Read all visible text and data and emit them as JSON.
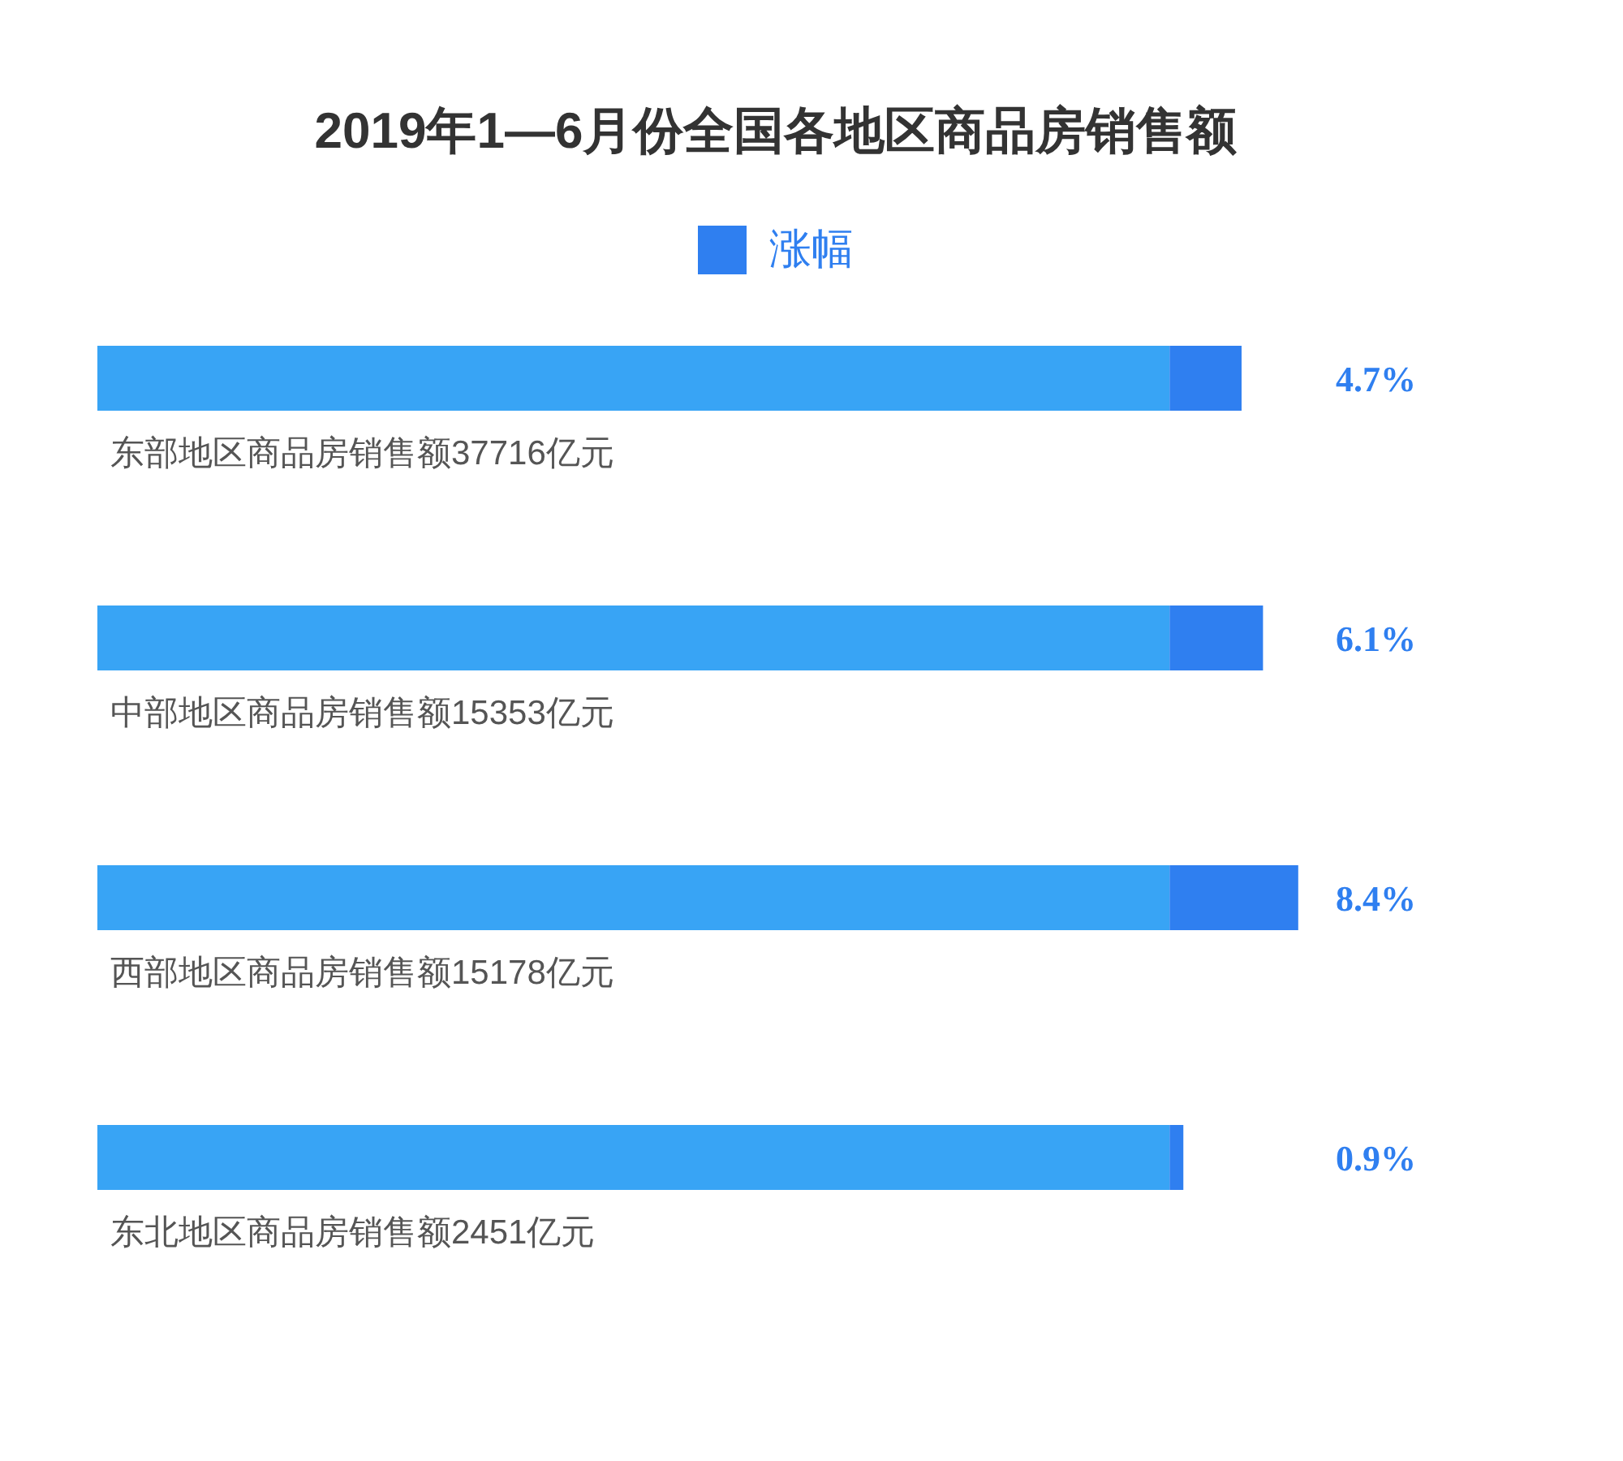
{
  "chart_data": {
    "type": "bar",
    "orientation": "horizontal",
    "stacked": true,
    "title": "2019年1—6月份全国各地区商品房销售额",
    "categories": [
      "东部地区商品房销售额37716亿元",
      "中部地区商品房销售额15353亿元",
      "西部地区商品房销售额15178亿元",
      "东北地区商品房销售额2451亿元"
    ],
    "series": [
      {
        "color": "#38a4f5",
        "values": [
          70,
          70,
          70,
          70
        ]
      },
      {
        "name": "涨幅",
        "color": "#2f7ff0",
        "values": [
          4.7,
          6.1,
          8.4,
          0.9
        ],
        "value_labels": [
          "4.7%",
          "6.1%",
          "8.4%",
          "0.9%"
        ]
      }
    ],
    "tick_labels": "y",
    "grid": false,
    "legend": "top"
  }
}
